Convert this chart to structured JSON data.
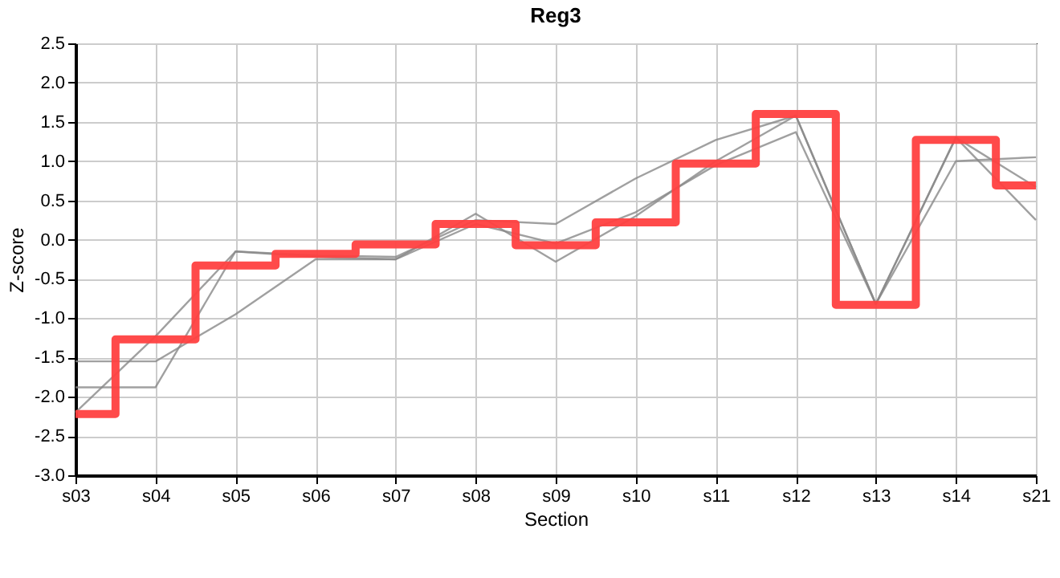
{
  "chart_data": {
    "type": "line",
    "title": "Reg3",
    "xlabel": "Section",
    "ylabel": "Z-score",
    "categories": [
      "s03",
      "s04",
      "s05",
      "s06",
      "s07",
      "s08",
      "s09",
      "s10",
      "s11",
      "s12",
      "s13",
      "s14",
      "s21"
    ],
    "series": [
      {
        "type": "line",
        "color": "#888888",
        "values": [
          -2.2,
          -1.23,
          -0.15,
          -0.2,
          -0.22,
          0.25,
          0.2,
          0.78,
          1.27,
          1.58,
          -0.82,
          1.3,
          0.67
        ]
      },
      {
        "type": "line",
        "color": "#888888",
        "values": [
          -1.55,
          -1.55,
          -0.95,
          -0.25,
          -0.25,
          0.2,
          -0.05,
          0.35,
          0.95,
          1.37,
          -0.82,
          1.0,
          1.05
        ]
      },
      {
        "type": "line",
        "color": "#888888",
        "values": [
          -1.88,
          -1.88,
          -0.15,
          -0.22,
          -0.25,
          0.33,
          -0.28,
          0.3,
          1.0,
          1.58,
          -0.82,
          1.3,
          0.25
        ]
      },
      {
        "type": "step",
        "color": "#ff4040",
        "values": [
          -2.22,
          -1.27,
          -0.33,
          -0.18,
          -0.06,
          0.2,
          -0.07,
          0.22,
          0.97,
          1.6,
          -0.83,
          1.27,
          0.69
        ]
      }
    ],
    "ylim": [
      -3.0,
      2.5
    ],
    "yticks": [
      {
        "value": -3,
        "label": "-3.0"
      },
      -2.5,
      {
        "value": -2,
        "label": "-2.0"
      },
      -1.5,
      {
        "value": -1,
        "label": "-1.0"
      },
      -0.5,
      {
        "value": 0,
        "label": "0.0"
      },
      0.5,
      {
        "value": 1,
        "label": "1.0"
      },
      1.5,
      {
        "value": 2,
        "label": "2.0"
      },
      2.5
    ],
    "grid": true,
    "marker": "none",
    "line_style": "solid"
  }
}
